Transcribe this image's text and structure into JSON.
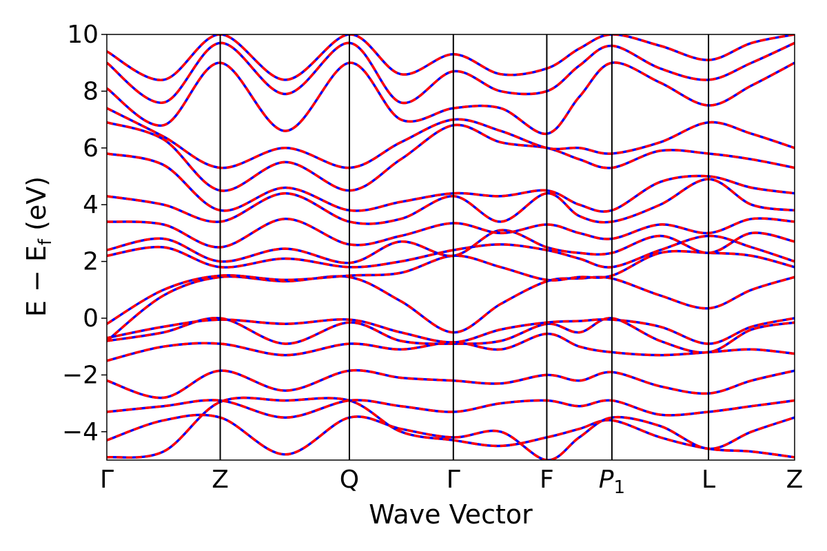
{
  "chart_data": {
    "type": "line",
    "title": "",
    "xlabel": "Wave Vector",
    "ylabel": "E − E_f (eV)",
    "ylabel_parts": {
      "main": "E − E",
      "sub": "f",
      "tail": " (eV)"
    },
    "ylim": [
      -5,
      10
    ],
    "yticks": [
      -4,
      -2,
      0,
      2,
      4,
      6,
      8,
      10
    ],
    "ytick_labels": [
      "−4",
      "−2",
      "0",
      "2",
      "4",
      "6",
      "8",
      "10"
    ],
    "xlim": [
      0,
      6.55
    ],
    "kpoints": [
      {
        "label": "Γ",
        "sub": "",
        "x": 0.0
      },
      {
        "label": "Z",
        "sub": "",
        "x": 1.08
      },
      {
        "label": "Q",
        "sub": "",
        "x": 2.31
      },
      {
        "label": "Γ",
        "sub": "",
        "x": 3.3
      },
      {
        "label": "F",
        "sub": "",
        "x": 4.19
      },
      {
        "label": "P",
        "sub": "1",
        "x": 4.81
      },
      {
        "label": "L",
        "sub": "",
        "x": 5.73
      },
      {
        "label": "Z",
        "sub": "",
        "x": 6.55
      }
    ],
    "grid": false,
    "legend": "none",
    "series_style": [
      {
        "color": "#ff0000",
        "dash": "solid"
      },
      {
        "color": "#0000ff",
        "dash": "dashed"
      }
    ],
    "bands": [
      {
        "x": [
          0,
          0.54,
          1.08,
          1.7,
          2.31,
          2.8,
          3.3,
          3.75,
          4.19,
          4.5,
          4.81,
          5.27,
          5.73,
          6.14,
          6.55
        ],
        "values": [
          -4.9,
          -4.7,
          -2.95,
          -2.9,
          -2.9,
          -4.0,
          -4.3,
          -4.5,
          -4.2,
          -3.9,
          -3.6,
          -4.2,
          -4.6,
          -4.7,
          -4.9
        ]
      },
      {
        "x": [
          0,
          0.54,
          1.08,
          1.7,
          2.31,
          2.8,
          3.3,
          3.75,
          4.19,
          4.5,
          4.81,
          5.27,
          5.73,
          6.14,
          6.55
        ],
        "values": [
          -4.3,
          -3.6,
          -3.5,
          -4.8,
          -3.5,
          -3.9,
          -4.2,
          -4.0,
          -5.0,
          -4.2,
          -3.5,
          -3.8,
          -4.6,
          -4.0,
          -3.5
        ]
      },
      {
        "x": [
          0,
          0.54,
          1.08,
          1.7,
          2.31,
          2.8,
          3.3,
          3.75,
          4.19,
          4.5,
          4.81,
          5.27,
          5.73,
          6.14,
          6.55
        ],
        "values": [
          -3.3,
          -3.1,
          -2.9,
          -3.5,
          -2.9,
          -3.1,
          -3.3,
          -3.0,
          -2.9,
          -3.1,
          -2.9,
          -3.4,
          -3.3,
          -3.1,
          -2.9
        ]
      },
      {
        "x": [
          0,
          0.54,
          1.08,
          1.7,
          2.31,
          2.8,
          3.3,
          3.75,
          4.19,
          4.5,
          4.81,
          5.27,
          5.73,
          6.14,
          6.55
        ],
        "values": [
          -2.2,
          -2.8,
          -1.85,
          -2.55,
          -1.85,
          -2.1,
          -2.2,
          -2.3,
          -2.0,
          -2.2,
          -1.9,
          -2.4,
          -2.65,
          -2.2,
          -1.85
        ]
      },
      {
        "x": [
          0,
          0.54,
          1.08,
          1.7,
          2.31,
          2.8,
          3.3,
          3.75,
          4.19,
          4.5,
          4.81,
          5.27,
          5.73,
          6.14,
          6.55
        ],
        "values": [
          -1.5,
          -1.0,
          -0.9,
          -1.3,
          -0.9,
          -1.1,
          -0.85,
          -1.1,
          -0.55,
          -1.0,
          -1.2,
          -1.3,
          -1.2,
          -1.1,
          -1.25
        ]
      },
      {
        "x": [
          0,
          0.54,
          1.08,
          1.7,
          2.31,
          2.8,
          3.3,
          3.75,
          4.19,
          4.5,
          4.81,
          5.27,
          5.73,
          6.14,
          6.55
        ],
        "values": [
          -0.8,
          -0.5,
          0.0,
          -0.9,
          -0.15,
          -0.8,
          -0.9,
          -0.8,
          -0.2,
          -0.5,
          0.0,
          -0.8,
          -1.2,
          -0.4,
          -0.15
        ]
      },
      {
        "x": [
          0,
          0.54,
          1.08,
          1.7,
          2.31,
          2.8,
          3.3,
          3.75,
          4.19,
          4.5,
          4.81,
          5.27,
          5.73,
          6.14,
          6.55
        ],
        "values": [
          -0.7,
          -0.3,
          -0.05,
          -0.2,
          -0.05,
          -0.5,
          -0.85,
          -0.4,
          -0.15,
          -0.1,
          -0.05,
          -0.3,
          -0.9,
          -0.3,
          0.0
        ]
      },
      {
        "x": [
          0,
          0.54,
          1.08,
          1.7,
          2.31,
          2.8,
          3.3,
          3.75,
          4.19,
          4.5,
          4.81,
          5.27,
          5.73,
          6.14,
          6.55
        ],
        "values": [
          -0.8,
          0.8,
          1.45,
          1.3,
          1.45,
          0.6,
          -0.5,
          0.5,
          1.3,
          1.4,
          1.4,
          0.8,
          0.35,
          1.0,
          1.45
        ]
      },
      {
        "x": [
          0,
          0.54,
          1.08,
          1.7,
          2.31,
          2.8,
          3.3,
          3.75,
          4.19,
          4.5,
          4.81,
          5.27,
          5.73,
          6.14,
          6.55
        ],
        "values": [
          -0.2,
          1.0,
          1.5,
          1.35,
          1.5,
          1.6,
          2.2,
          1.8,
          1.35,
          1.45,
          1.5,
          2.3,
          2.3,
          2.2,
          1.8
        ]
      },
      {
        "x": [
          0,
          0.54,
          1.08,
          1.7,
          2.31,
          2.8,
          3.3,
          3.75,
          4.19,
          4.5,
          4.81,
          5.27,
          5.73,
          6.14,
          6.55
        ],
        "values": [
          2.2,
          2.5,
          1.8,
          2.1,
          1.8,
          2.0,
          2.4,
          2.6,
          2.4,
          2.1,
          1.8,
          2.4,
          2.9,
          2.5,
          2.0
        ]
      },
      {
        "x": [
          0,
          0.54,
          1.08,
          1.7,
          2.31,
          2.8,
          3.3,
          3.75,
          4.19,
          4.5,
          4.81,
          5.27,
          5.73,
          6.14,
          6.55
        ],
        "values": [
          2.4,
          2.8,
          2.0,
          2.45,
          1.95,
          2.7,
          2.2,
          3.1,
          2.5,
          2.3,
          2.3,
          2.9,
          2.3,
          3.0,
          2.7
        ]
      },
      {
        "x": [
          0,
          0.54,
          1.08,
          1.7,
          2.31,
          2.8,
          3.3,
          3.75,
          4.19,
          4.5,
          4.81,
          5.27,
          5.73,
          6.14,
          6.55
        ],
        "values": [
          3.4,
          3.3,
          2.5,
          3.5,
          2.6,
          2.9,
          3.35,
          3.0,
          3.3,
          3.0,
          2.8,
          3.3,
          3.0,
          3.5,
          3.4
        ]
      },
      {
        "x": [
          0,
          0.54,
          1.08,
          1.7,
          2.31,
          2.8,
          3.3,
          3.75,
          4.19,
          4.5,
          4.81,
          5.27,
          5.73,
          6.14,
          6.55
        ],
        "values": [
          4.3,
          4.0,
          3.4,
          4.4,
          3.4,
          3.5,
          4.3,
          3.4,
          4.4,
          3.6,
          3.4,
          4.0,
          4.9,
          4.0,
          3.8
        ]
      },
      {
        "x": [
          0,
          0.54,
          1.08,
          1.7,
          2.31,
          2.8,
          3.3,
          3.75,
          4.19,
          4.5,
          4.81,
          5.27,
          5.73,
          6.14,
          6.55
        ],
        "values": [
          5.8,
          5.4,
          3.8,
          4.6,
          3.8,
          4.1,
          4.4,
          4.3,
          4.5,
          4.0,
          3.8,
          4.8,
          5.0,
          4.6,
          4.4
        ]
      },
      {
        "x": [
          0,
          0.54,
          1.08,
          1.7,
          2.31,
          2.8,
          3.3,
          3.75,
          4.19,
          4.5,
          4.81,
          5.27,
          5.73,
          6.14,
          6.55
        ],
        "values": [
          6.9,
          6.3,
          4.5,
          5.5,
          4.5,
          5.6,
          6.8,
          6.2,
          6.0,
          5.6,
          5.3,
          5.9,
          5.8,
          5.6,
          5.3
        ]
      },
      {
        "x": [
          0,
          0.54,
          1.08,
          1.7,
          2.31,
          2.8,
          3.3,
          3.75,
          4.19,
          4.5,
          4.81,
          5.27,
          5.73,
          6.14,
          6.55
        ],
        "values": [
          7.4,
          6.4,
          5.3,
          6.0,
          5.3,
          6.2,
          7.0,
          6.6,
          6.0,
          6.0,
          5.8,
          6.2,
          6.9,
          6.5,
          6.0
        ]
      },
      {
        "x": [
          0,
          0.54,
          1.08,
          1.7,
          2.31,
          2.8,
          3.3,
          3.75,
          4.19,
          4.5,
          4.81,
          5.27,
          5.73,
          6.14,
          6.55
        ],
        "values": [
          8.1,
          6.8,
          9.0,
          6.6,
          9.0,
          7.0,
          7.4,
          7.4,
          6.5,
          7.8,
          9.0,
          8.3,
          7.5,
          8.2,
          9.0
        ]
      },
      {
        "x": [
          0,
          0.54,
          1.08,
          1.7,
          2.31,
          2.8,
          3.3,
          3.75,
          4.19,
          4.5,
          4.81,
          5.27,
          5.73,
          6.14,
          6.55
        ],
        "values": [
          9.0,
          7.6,
          9.7,
          7.9,
          9.7,
          7.6,
          8.7,
          8.0,
          8.0,
          8.9,
          9.6,
          8.8,
          8.4,
          9.0,
          9.7
        ]
      },
      {
        "x": [
          0,
          0.54,
          1.08,
          1.7,
          2.31,
          2.8,
          3.3,
          3.75,
          4.19,
          4.5,
          4.81,
          5.27,
          5.73,
          6.14,
          6.55
        ],
        "values": [
          9.4,
          8.4,
          10.0,
          8.4,
          10.0,
          8.6,
          9.3,
          8.6,
          8.8,
          9.5,
          10.0,
          9.6,
          9.1,
          9.7,
          10.0
        ]
      }
    ]
  }
}
